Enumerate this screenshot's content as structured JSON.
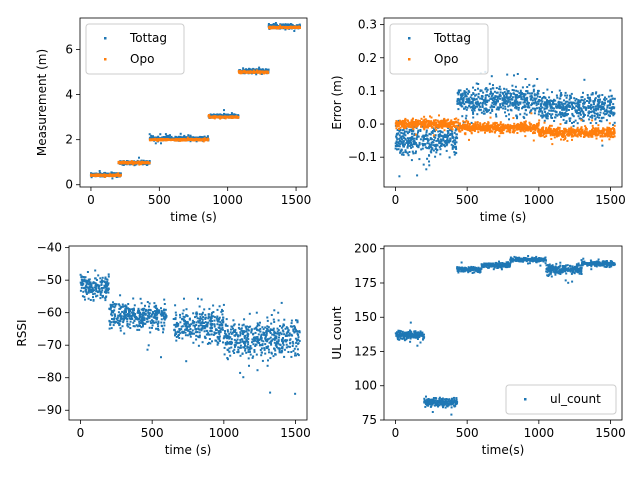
{
  "colors": {
    "tottag": "#1f77b4",
    "opo": "#ff7f0e",
    "ul_count": "#1f77b4"
  },
  "chart_data": [
    {
      "type": "scatter",
      "xlabel": "time (s)",
      "ylabel": "Measurement (m)",
      "xlim": [
        -80,
        1580
      ],
      "ylim": [
        -0.1,
        7.4
      ],
      "xticks": [
        0,
        500,
        1000,
        1500
      ],
      "yticks": [
        0,
        2,
        4,
        6
      ],
      "legend": "top-left",
      "series": [
        {
          "name": "Tottag",
          "segments": [
            {
              "x": [
                0,
                220
              ],
              "y": 0.45,
              "spread": 0.07
            },
            {
              "x": [
                200,
                430
              ],
              "y": 0.98,
              "spread": 0.06
            },
            {
              "x": [
                430,
                860
              ],
              "y": 2.05,
              "spread": 0.07
            },
            {
              "x": [
                860,
                1080
              ],
              "y": 3.05,
              "spread": 0.07
            },
            {
              "x": [
                1080,
                1300
              ],
              "y": 5.05,
              "spread": 0.08
            },
            {
              "x": [
                1300,
                1530
              ],
              "y": 7.02,
              "spread": 0.08
            }
          ]
        },
        {
          "name": "Opo",
          "segments": [
            {
              "x": [
                0,
                220
              ],
              "y": 0.42,
              "spread": 0.03
            },
            {
              "x": [
                200,
                430
              ],
              "y": 0.98,
              "spread": 0.03
            },
            {
              "x": [
                430,
                860
              ],
              "y": 2.0,
              "spread": 0.03
            },
            {
              "x": [
                860,
                1080
              ],
              "y": 3.0,
              "spread": 0.03
            },
            {
              "x": [
                1080,
                1300
              ],
              "y": 5.0,
              "spread": 0.03
            },
            {
              "x": [
                1300,
                1530
              ],
              "y": 6.98,
              "spread": 0.03
            }
          ]
        }
      ]
    },
    {
      "type": "scatter",
      "xlabel": "time (s)",
      "ylabel": "Error (m)",
      "xlim": [
        -80,
        1580
      ],
      "ylim": [
        -0.19,
        0.32
      ],
      "xticks": [
        0,
        500,
        1000,
        1500
      ],
      "yticks": [
        -0.1,
        0.0,
        0.1,
        0.2,
        0.3
      ],
      "ytick_labels": [
        "−0.1",
        "0.0",
        "0.1",
        "0.2",
        "0.3"
      ],
      "legend": "top-left",
      "series": [
        {
          "name": "Tottag",
          "segments": [
            {
              "x": [
                0,
                430
              ],
              "y": -0.05,
              "spread": 0.035
            },
            {
              "x": [
                430,
                1000
              ],
              "y": 0.07,
              "spread": 0.035
            },
            {
              "x": [
                1000,
                1530
              ],
              "y": 0.05,
              "spread": 0.035
            }
          ]
        },
        {
          "name": "Opo",
          "segments": [
            {
              "x": [
                0,
                430
              ],
              "y": 0.0,
              "spread": 0.01
            },
            {
              "x": [
                430,
                1000
              ],
              "y": -0.01,
              "spread": 0.012
            },
            {
              "x": [
                1000,
                1530
              ],
              "y": -0.025,
              "spread": 0.012
            }
          ]
        }
      ]
    },
    {
      "type": "scatter",
      "xlabel": "time (s)",
      "ylabel": "RSSI",
      "xlim": [
        -80,
        1580
      ],
      "ylim": [
        -93,
        -39.5
      ],
      "xticks": [
        0,
        500,
        1000,
        1500
      ],
      "yticks": [
        -90,
        -80,
        -70,
        -60,
        -50,
        -40
      ],
      "ytick_labels": [
        "−90",
        "−80",
        "−70",
        "−60",
        "−50",
        "−40"
      ],
      "series": [
        {
          "name": "RSSI",
          "segments": [
            {
              "x": [
                0,
                200
              ],
              "y": -52,
              "spread": 3
            },
            {
              "x": [
                200,
                600
              ],
              "y": -61,
              "spread": 3.5
            },
            {
              "x": [
                650,
                1000
              ],
              "y": -64,
              "spread": 4
            },
            {
              "x": [
                1000,
                1530
              ],
              "y": -68,
              "spread": 4.5
            }
          ]
        }
      ]
    },
    {
      "type": "scatter",
      "xlabel": "time(s)",
      "ylabel": "UL count",
      "xlim": [
        -80,
        1580
      ],
      "ylim": [
        75,
        202
      ],
      "xticks": [
        0,
        500,
        1000,
        1500
      ],
      "yticks": [
        75,
        100,
        125,
        150,
        175,
        200
      ],
      "legend": "bottom-right",
      "series": [
        {
          "name": "ul_count",
          "segments": [
            {
              "x": [
                0,
                200
              ],
              "y": 137,
              "spread": 2.5
            },
            {
              "x": [
                200,
                430
              ],
              "y": 88,
              "spread": 2.5
            },
            {
              "x": [
                430,
                600
              ],
              "y": 185,
              "spread": 1.5
            },
            {
              "x": [
                600,
                800
              ],
              "y": 188,
              "spread": 1.5
            },
            {
              "x": [
                800,
                1050
              ],
              "y": 192,
              "spread": 1.2
            },
            {
              "x": [
                1050,
                1300
              ],
              "y": 185,
              "spread": 3
            },
            {
              "x": [
                1300,
                1530
              ],
              "y": 189,
              "spread": 1.5
            }
          ]
        }
      ]
    }
  ]
}
